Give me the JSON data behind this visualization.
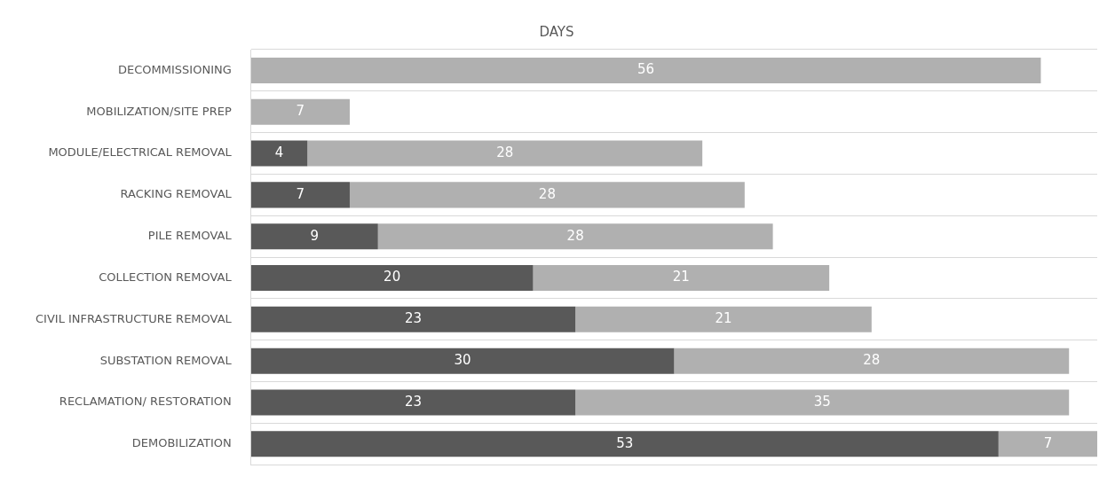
{
  "chart_data": {
    "type": "bar",
    "orientation": "horizontal",
    "stacked": true,
    "title": "DAYS",
    "categories": [
      "DECOMMISSIONING",
      "MOBILIZATION/SITE PREP",
      "MODULE/ELECTRICAL REMOVAL",
      "RACKING REMOVAL",
      "PILE REMOVAL",
      "COLLECTION REMOVAL",
      "CIVIL INFRASTRUCTURE REMOVAL",
      "SUBSTATION REMOVAL",
      "RECLAMATION/ RESTORATION",
      "DEMOBILIZATION"
    ],
    "series": [
      {
        "color": "#595959",
        "values": [
          0,
          0,
          4,
          7,
          9,
          20,
          23,
          30,
          23,
          53
        ],
        "value_labels": [
          null,
          null,
          "4",
          "7",
          "9",
          "20",
          "23",
          "30",
          "23",
          "53"
        ]
      },
      {
        "color": "#b0b0b0",
        "values": [
          56,
          7,
          28,
          28,
          28,
          21,
          21,
          28,
          35,
          7
        ],
        "value_labels": [
          "56",
          "7",
          "28",
          "28",
          "28",
          "21",
          "21",
          "28",
          "35",
          "7"
        ]
      }
    ],
    "xlim": [
      0,
      60
    ],
    "tick_labels": "y",
    "grid": "y",
    "legend": false
  }
}
